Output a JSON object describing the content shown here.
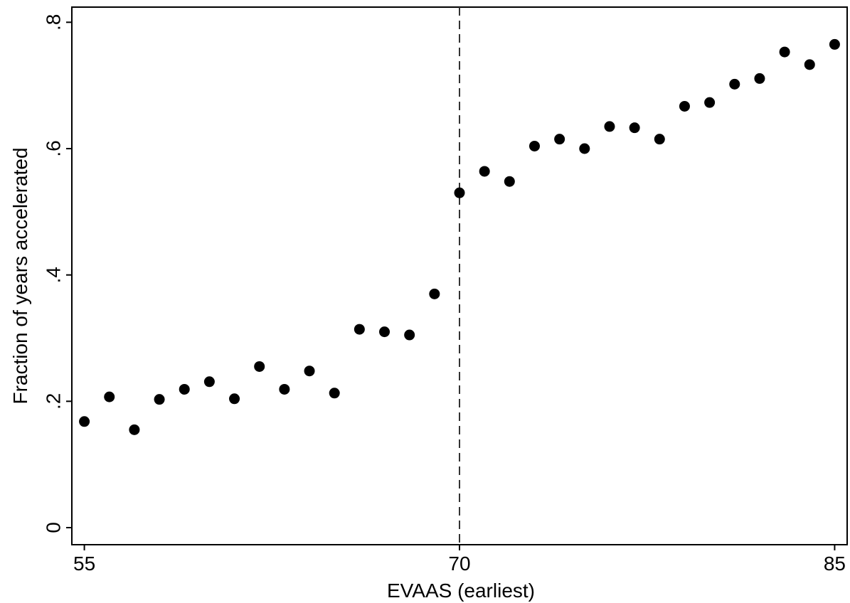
{
  "chart_data": {
    "type": "scatter",
    "title": "",
    "xlabel": "EVAAS (earliest)",
    "ylabel": "Fraction of years accelerated",
    "xlim": [
      54.5,
      85.5
    ],
    "ylim": [
      -0.027,
      0.824
    ],
    "xticks": [
      {
        "value": 55,
        "label": "55"
      },
      {
        "value": 70,
        "label": "70"
      },
      {
        "value": 85,
        "label": "85"
      }
    ],
    "yticks": [
      {
        "value": 0,
        "label": "0"
      },
      {
        "value": 0.2,
        "label": ".2"
      },
      {
        "value": 0.4,
        "label": ".4"
      },
      {
        "value": 0.6,
        "label": ".6"
      },
      {
        "value": 0.8,
        "label": ".8"
      }
    ],
    "cutoff_line": {
      "x": 70,
      "style": "dashed"
    },
    "grid": false,
    "legend": "none",
    "marker_color": "#000000",
    "series": [
      {
        "points": [
          {
            "x": 55,
            "y": 0.168
          },
          {
            "x": 56,
            "y": 0.207
          },
          {
            "x": 57,
            "y": 0.155
          },
          {
            "x": 58,
            "y": 0.203
          },
          {
            "x": 59,
            "y": 0.219
          },
          {
            "x": 60,
            "y": 0.231
          },
          {
            "x": 61,
            "y": 0.204
          },
          {
            "x": 62,
            "y": 0.255
          },
          {
            "x": 63,
            "y": 0.219
          },
          {
            "x": 64,
            "y": 0.248
          },
          {
            "x": 65,
            "y": 0.213
          },
          {
            "x": 66,
            "y": 0.314
          },
          {
            "x": 67,
            "y": 0.31
          },
          {
            "x": 68,
            "y": 0.305
          },
          {
            "x": 69,
            "y": 0.37
          },
          {
            "x": 70,
            "y": 0.53
          },
          {
            "x": 71,
            "y": 0.564
          },
          {
            "x": 72,
            "y": 0.548
          },
          {
            "x": 73,
            "y": 0.604
          },
          {
            "x": 74,
            "y": 0.615
          },
          {
            "x": 75,
            "y": 0.6
          },
          {
            "x": 76,
            "y": 0.635
          },
          {
            "x": 77,
            "y": 0.633
          },
          {
            "x": 78,
            "y": 0.615
          },
          {
            "x": 79,
            "y": 0.667
          },
          {
            "x": 80,
            "y": 0.673
          },
          {
            "x": 81,
            "y": 0.702
          },
          {
            "x": 82,
            "y": 0.711
          },
          {
            "x": 83,
            "y": 0.753
          },
          {
            "x": 84,
            "y": 0.733
          },
          {
            "x": 85,
            "y": 0.765
          }
        ]
      }
    ]
  }
}
